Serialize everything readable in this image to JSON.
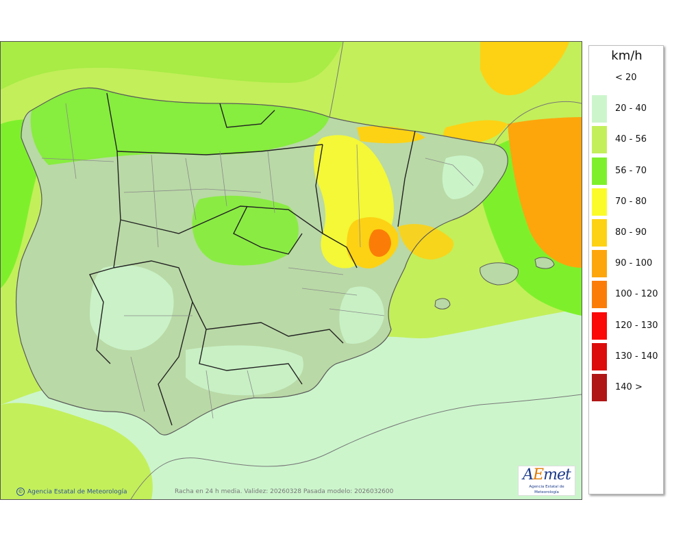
{
  "legend": {
    "unit": "km/h",
    "classes": [
      {
        "label": "< 20",
        "color": "#ffffff"
      },
      {
        "label": "20 - 40",
        "color": "#ccf5cc"
      },
      {
        "label": "40 - 56",
        "color": "#c3ef5a"
      },
      {
        "label": "56 - 70",
        "color": "#7ef02b"
      },
      {
        "label": "70 - 80",
        "color": "#fbfb2a"
      },
      {
        "label": "80 - 90",
        "color": "#fdd214"
      },
      {
        "label": "90 - 100",
        "color": "#fda60c"
      },
      {
        "label": "100 - 120",
        "color": "#fb7d07"
      },
      {
        "label": "120 - 130",
        "color": "#fb0808"
      },
      {
        "label": "130 - 140",
        "color": "#dd0c0c"
      },
      {
        "label": "140 >",
        "color": "#b01616"
      }
    ]
  },
  "credit": {
    "symbol": "©",
    "text": "Agencia Estatal de Meteorología"
  },
  "caption": "Racha en 24 h media. Validez: 20260328 Pasada modelo: 2026032600",
  "logo": {
    "text_a": "A",
    "text_e": "E",
    "text_met": "met",
    "subtitle": "Agencia Estatal de Meteorología"
  },
  "map": {
    "land_shading": "#b9d9a6",
    "border_color": "#222222",
    "province_border_color": "#8a8a8a",
    "coast_color": "#5a5a5a"
  }
}
